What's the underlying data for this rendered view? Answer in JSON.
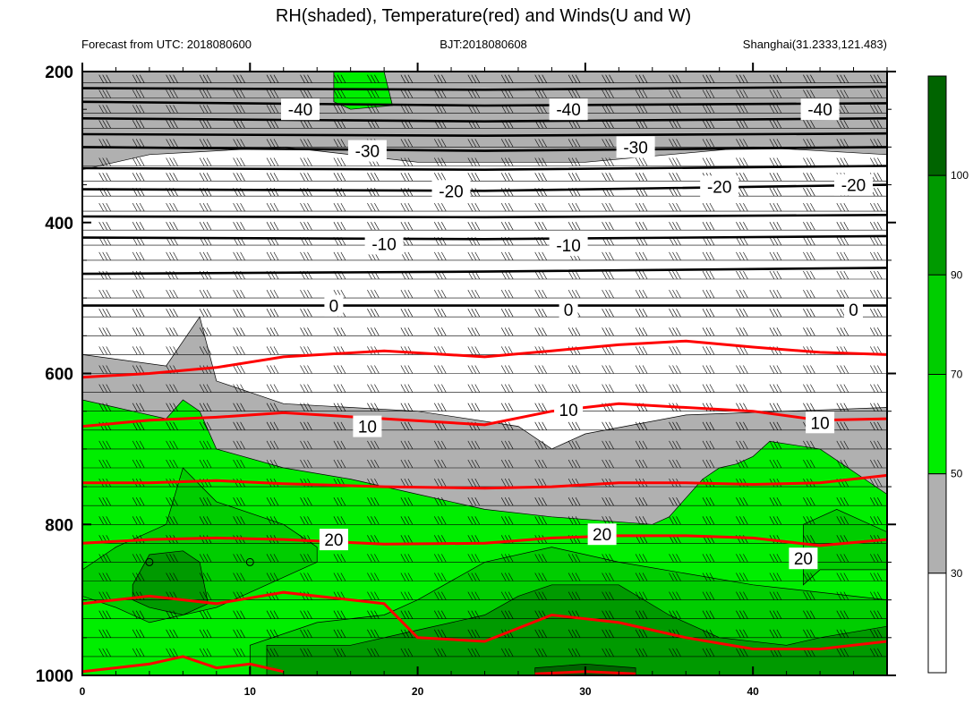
{
  "chart_data": {
    "type": "heatmap",
    "title": "RH(shaded), Temperature(red) and Winds(U and W)",
    "subtitle_left": "Forecast from UTC: 2018080600",
    "subtitle_center": "BJT:2018080608",
    "subtitle_right": "Shanghai(31.2333,121.483)",
    "xlabel": "",
    "ylabel": "",
    "xlim": [
      0,
      48
    ],
    "ylim": [
      1000,
      200
    ],
    "x_ticks": [
      "0",
      "10",
      "20",
      "30",
      "40"
    ],
    "y_ticks": [
      "200",
      "400",
      "600",
      "800",
      "1000"
    ],
    "colorbar": {
      "ticks": [
        "30",
        "50",
        "70",
        "90",
        "100"
      ],
      "levels": [
        {
          "range": [
            0,
            30
          ],
          "color": "#ffffff"
        },
        {
          "range": [
            30,
            50
          ],
          "color": "#b0b0b0"
        },
        {
          "range": [
            50,
            70
          ],
          "color": "#00ee00"
        },
        {
          "range": [
            70,
            90
          ],
          "color": "#00cd00"
        },
        {
          "range": [
            90,
            100
          ],
          "color": "#009a00"
        },
        {
          "range": [
            100,
            110
          ],
          "color": "#006400"
        }
      ]
    },
    "rh_regions": [
      {
        "level": 30,
        "color": "#b0b0b0",
        "points": [
          [
            0,
            200
          ],
          [
            48,
            200
          ],
          [
            48,
            310
          ],
          [
            40,
            300
          ],
          [
            30,
            320
          ],
          [
            20,
            320
          ],
          [
            12,
            300
          ],
          [
            4,
            310
          ],
          [
            0,
            330
          ]
        ]
      },
      {
        "level": 30,
        "color": "#b0b0b0",
        "points": [
          [
            0,
            575
          ],
          [
            5,
            590
          ],
          [
            7,
            525
          ],
          [
            8,
            610
          ],
          [
            12,
            640
          ],
          [
            20,
            650
          ],
          [
            26,
            670
          ],
          [
            28,
            700
          ],
          [
            30,
            680
          ],
          [
            36,
            655
          ],
          [
            48,
            645
          ],
          [
            48,
            1000
          ],
          [
            0,
            1000
          ]
        ]
      },
      {
        "level": 50,
        "color": "#00ee00",
        "points": [
          [
            15,
            200
          ],
          [
            18,
            200
          ],
          [
            18.5,
            245
          ],
          [
            16,
            250
          ],
          [
            15,
            240
          ]
        ]
      },
      {
        "level": 50,
        "color": "#00ee00",
        "points": [
          [
            0,
            635
          ],
          [
            3,
            650
          ],
          [
            5,
            660
          ],
          [
            6,
            635
          ],
          [
            7,
            650
          ],
          [
            8,
            700
          ],
          [
            12,
            725
          ],
          [
            16,
            740
          ],
          [
            20,
            760
          ],
          [
            24,
            780
          ],
          [
            28,
            790
          ],
          [
            34,
            800
          ],
          [
            35,
            790
          ],
          [
            37,
            740
          ],
          [
            38,
            725
          ],
          [
            39,
            720
          ],
          [
            40,
            710
          ],
          [
            41,
            690
          ],
          [
            44,
            700
          ],
          [
            48,
            760
          ],
          [
            48,
            1000
          ],
          [
            0,
            1000
          ]
        ]
      },
      {
        "level": 70,
        "color": "#00cd00",
        "points": [
          [
            0,
            860
          ],
          [
            2,
            830
          ],
          [
            5,
            800
          ],
          [
            6,
            725
          ],
          [
            8,
            770
          ],
          [
            12,
            800
          ],
          [
            14,
            830
          ],
          [
            14,
            850
          ],
          [
            12,
            870
          ],
          [
            8,
            910
          ],
          [
            4,
            930
          ],
          [
            2,
            910
          ],
          [
            0,
            895
          ]
        ]
      },
      {
        "level": 70,
        "color": "#00cd00",
        "points": [
          [
            20,
            900
          ],
          [
            24,
            850
          ],
          [
            28,
            830
          ],
          [
            32,
            850
          ],
          [
            40,
            880
          ],
          [
            48,
            900
          ],
          [
            48,
            1000
          ],
          [
            10,
            1000
          ],
          [
            10,
            960
          ],
          [
            14,
            930
          ],
          [
            18,
            920
          ]
        ]
      },
      {
        "level": 70,
        "color": "#00cd00",
        "points": [
          [
            43,
            800
          ],
          [
            45,
            780
          ],
          [
            48,
            810
          ],
          [
            48,
            860
          ],
          [
            44,
            860
          ],
          [
            43,
            880
          ]
        ]
      },
      {
        "level": 90,
        "color": "#009a00",
        "points": [
          [
            3,
            880
          ],
          [
            4,
            840
          ],
          [
            6,
            835
          ],
          [
            7,
            850
          ],
          [
            7.5,
            905
          ],
          [
            6,
            920
          ],
          [
            4,
            910
          ],
          [
            3,
            900
          ]
        ]
      },
      {
        "level": 90,
        "color": "#009a00",
        "points": [
          [
            11,
            960
          ],
          [
            16,
            960
          ],
          [
            20,
            940
          ],
          [
            24,
            920
          ],
          [
            26,
            895
          ],
          [
            28,
            880
          ],
          [
            32,
            880
          ],
          [
            35,
            920
          ],
          [
            38,
            950
          ],
          [
            42,
            960
          ],
          [
            44,
            950
          ],
          [
            48,
            935
          ],
          [
            48,
            1000
          ],
          [
            11,
            1000
          ]
        ]
      },
      {
        "level": 100,
        "color": "#006400",
        "points": [
          [
            27,
            990
          ],
          [
            30,
            985
          ],
          [
            33,
            990
          ],
          [
            33,
            1000
          ],
          [
            27,
            1000
          ]
        ]
      }
    ],
    "temperature_contours": [
      {
        "label": "10",
        "color": "#ff0000",
        "x": [
          0,
          4,
          8,
          12,
          18,
          24,
          28,
          32,
          36,
          40,
          44,
          48
        ],
        "y": [
          670,
          662,
          658,
          652,
          660,
          668,
          650,
          640,
          645,
          650,
          662,
          660
        ]
      },
      {
        "label": "",
        "color": "#ff0000",
        "x": [
          0,
          4,
          8,
          12,
          18,
          24,
          28,
          32,
          36,
          40,
          44,
          48
        ],
        "y": [
          605,
          600,
          592,
          578,
          570,
          578,
          570,
          562,
          557,
          565,
          572,
          575
        ]
      },
      {
        "label": "",
        "color": "#ff0000",
        "x": [
          0,
          4,
          8,
          12,
          18,
          24,
          28,
          32,
          36,
          40,
          44,
          48
        ],
        "y": [
          745,
          745,
          742,
          746,
          750,
          752,
          750,
          745,
          745,
          747,
          745,
          735
        ]
      },
      {
        "label": "20",
        "color": "#ff0000",
        "x": [
          0,
          4,
          8,
          12,
          18,
          24,
          28,
          32,
          36,
          40,
          44,
          48
        ],
        "y": [
          825,
          820,
          818,
          820,
          826,
          825,
          818,
          815,
          815,
          818,
          828,
          820
        ]
      },
      {
        "label": "",
        "color": "#ff0000",
        "x": [
          0,
          4,
          8,
          12,
          18,
          20,
          24,
          28,
          32,
          36,
          40,
          44,
          48
        ],
        "y": [
          905,
          895,
          905,
          890,
          905,
          950,
          955,
          920,
          930,
          950,
          965,
          965,
          955
        ]
      },
      {
        "label": "",
        "color": "#ff0000",
        "x": [
          0,
          4,
          6,
          8,
          10,
          12
        ],
        "y": [
          995,
          985,
          975,
          990,
          985,
          995
        ]
      },
      {
        "label": "",
        "color": "#ff0000",
        "x": [
          27,
          30,
          33
        ],
        "y": [
          998,
          995,
          998
        ]
      }
    ],
    "isotherms_upper": [
      {
        "label": "-40",
        "y": [
          240,
          245,
          242
        ]
      },
      {
        "label": "",
        "y": [
          222,
          224,
          220
        ]
      },
      {
        "label": "",
        "y": [
          262,
          266,
          262
        ]
      },
      {
        "label": "-30",
        "y": [
          300,
          305,
          300
        ]
      },
      {
        "label": "",
        "y": [
          283,
          285,
          282
        ]
      },
      {
        "label": "",
        "y": [
          328,
          330,
          325
        ]
      },
      {
        "label": "-20",
        "y": [
          356,
          358,
          350
        ]
      },
      {
        "label": "",
        "y": [
          392,
          393,
          390
        ]
      },
      {
        "label": "-10",
        "y": [
          420,
          422,
          418
        ]
      },
      {
        "label": "",
        "y": [
          468,
          465,
          460
        ]
      },
      {
        "label": "0",
        "y": [
          510,
          510,
          510
        ]
      }
    ],
    "contour_labels": [
      {
        "text": "-40",
        "x": 13,
        "y": 250
      },
      {
        "text": "-40",
        "x": 29,
        "y": 250
      },
      {
        "text": "-40",
        "x": 44,
        "y": 250
      },
      {
        "text": "-30",
        "x": 17,
        "y": 305
      },
      {
        "text": "-30",
        "x": 33,
        "y": 300
      },
      {
        "text": "-20",
        "x": 22,
        "y": 358
      },
      {
        "text": "-20",
        "x": 38,
        "y": 352
      },
      {
        "text": "-20",
        "x": 46,
        "y": 350
      },
      {
        "text": "-10",
        "x": 18,
        "y": 428
      },
      {
        "text": "-10",
        "x": 29,
        "y": 430
      },
      {
        "text": "0",
        "x": 15,
        "y": 510
      },
      {
        "text": "0",
        "x": 29,
        "y": 515
      },
      {
        "text": "0",
        "x": 46,
        "y": 515
      },
      {
        "text": "10",
        "x": 17,
        "y": 670
      },
      {
        "text": "10",
        "x": 29,
        "y": 648
      },
      {
        "text": "10",
        "x": 44,
        "y": 665
      },
      {
        "text": "20",
        "x": 15,
        "y": 820
      },
      {
        "text": "20",
        "x": 31,
        "y": 813
      },
      {
        "text": "20",
        "x": 43,
        "y": 845
      }
    ],
    "wind_levels": [
      215,
      235,
      255,
      275,
      300,
      325,
      345,
      365,
      385,
      410,
      430,
      450,
      475,
      500,
      525,
      550,
      575,
      600,
      625,
      650,
      675,
      700,
      725,
      750,
      775,
      800,
      825,
      850,
      875,
      900,
      925,
      950,
      975
    ],
    "wind_columns": [
      0,
      2,
      4,
      6,
      8,
      10,
      12,
      14,
      16,
      18,
      20,
      22,
      24,
      26,
      28,
      30,
      32,
      34,
      36,
      38,
      40,
      42,
      44,
      46
    ],
    "calm_markers": [
      {
        "x": 4,
        "y": 850
      },
      {
        "x": 10,
        "y": 850
      }
    ]
  }
}
